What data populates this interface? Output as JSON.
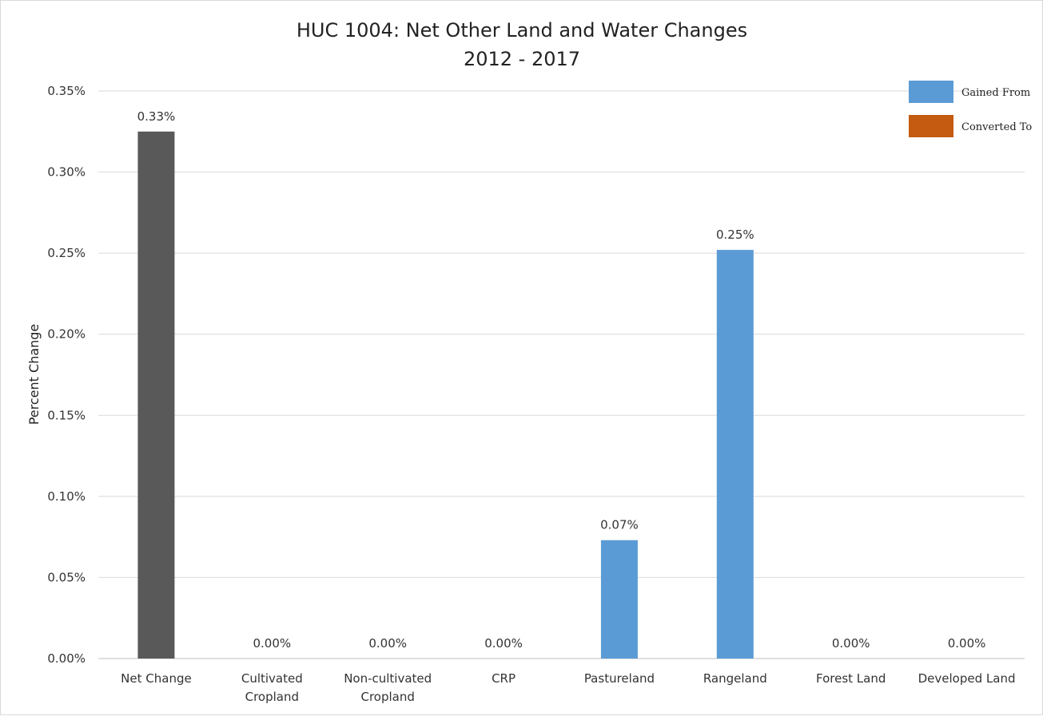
{
  "chart_data": {
    "type": "bar",
    "title": [
      "HUC 1004: Net Other Land and Water Changes",
      "2012 - 2017"
    ],
    "xlabel": "",
    "ylabel": "Percent Change",
    "ylim": [
      0,
      0.35
    ],
    "yticks": [
      0,
      0.05,
      0.1,
      0.15,
      0.2,
      0.25,
      0.3,
      0.35
    ],
    "ytick_labels": [
      "0.00%",
      "0.05%",
      "0.10%",
      "0.15%",
      "0.20%",
      "0.25%",
      "0.30%",
      "0.35%"
    ],
    "grid": true,
    "legend_position": "top-right",
    "categories": [
      [
        "Net Change"
      ],
      [
        "Cultivated",
        "Cropland"
      ],
      [
        "Non-cultivated",
        "Cropland"
      ],
      [
        "CRP"
      ],
      [
        "Pastureland"
      ],
      [
        "Rangeland"
      ],
      [
        "Forest Land"
      ],
      [
        "Developed Land"
      ]
    ],
    "values": [
      0.325,
      0,
      0,
      0,
      0.073,
      0.252,
      0,
      0
    ],
    "data_labels": [
      "0.33%",
      "0.00%",
      "0.00%",
      "0.00%",
      "0.07%",
      "0.25%",
      "0.00%",
      "0.00%"
    ],
    "bar_colors": [
      "#595959",
      "#5b9bd5",
      "#5b9bd5",
      "#5b9bd5",
      "#5b9bd5",
      "#5b9bd5",
      "#5b9bd5",
      "#5b9bd5"
    ],
    "series": [
      {
        "name": "Gained From",
        "color": "#5b9bd5"
      },
      {
        "name": "Converted To",
        "color": "#c55a11"
      }
    ]
  }
}
